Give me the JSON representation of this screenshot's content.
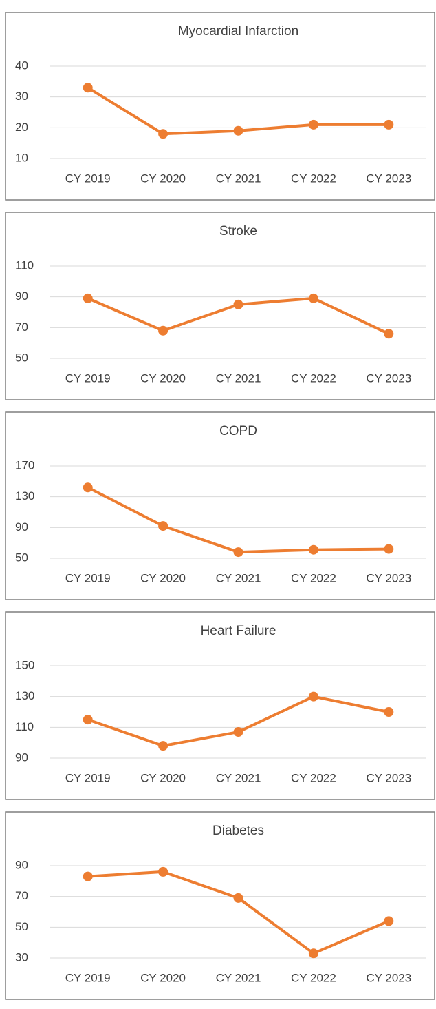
{
  "chart_data": [
    {
      "type": "line",
      "title": "Myocardial Infarction",
      "categories": [
        "CY 2019",
        "CY 2020",
        "CY 2021",
        "CY 2022",
        "CY 2023"
      ],
      "series": [
        {
          "color": "#ed7d31",
          "values": [
            33,
            18,
            19,
            21,
            21
          ]
        }
      ],
      "ylim": [
        10,
        40
      ],
      "yticks": [
        10,
        20,
        30,
        40
      ],
      "grid": true
    },
    {
      "type": "line",
      "title": "Stroke",
      "categories": [
        "CY 2019",
        "CY 2020",
        "CY 2021",
        "CY 2022",
        "CY 2023"
      ],
      "series": [
        {
          "color": "#ed7d31",
          "values": [
            89,
            68,
            85,
            89,
            66
          ]
        }
      ],
      "ylim": [
        50,
        110
      ],
      "yticks": [
        50,
        70,
        90,
        110
      ],
      "grid": true
    },
    {
      "type": "line",
      "title": "COPD",
      "categories": [
        "CY 2019",
        "CY 2020",
        "CY 2021",
        "CY 2022",
        "CY 2023"
      ],
      "series": [
        {
          "color": "#ed7d31",
          "values": [
            142,
            92,
            58,
            61,
            62
          ]
        }
      ],
      "ylim": [
        50,
        170
      ],
      "yticks": [
        50,
        90,
        130,
        170
      ],
      "grid": true
    },
    {
      "type": "line",
      "title": "Heart Failure",
      "categories": [
        "CY 2019",
        "CY 2020",
        "CY 2021",
        "CY 2022",
        "CY 2023"
      ],
      "series": [
        {
          "color": "#ed7d31",
          "values": [
            115,
            98,
            107,
            130,
            120
          ]
        }
      ],
      "ylim": [
        90,
        150
      ],
      "yticks": [
        90,
        110,
        130,
        150
      ],
      "grid": true
    },
    {
      "type": "line",
      "title": "Diabetes",
      "categories": [
        "CY 2019",
        "CY 2020",
        "CY 2021",
        "CY 2022",
        "CY 2023"
      ],
      "series": [
        {
          "color": "#ed7d31",
          "values": [
            83,
            86,
            69,
            33,
            54
          ]
        }
      ],
      "ylim": [
        30,
        90
      ],
      "yticks": [
        30,
        50,
        70,
        90
      ],
      "grid": true
    }
  ]
}
